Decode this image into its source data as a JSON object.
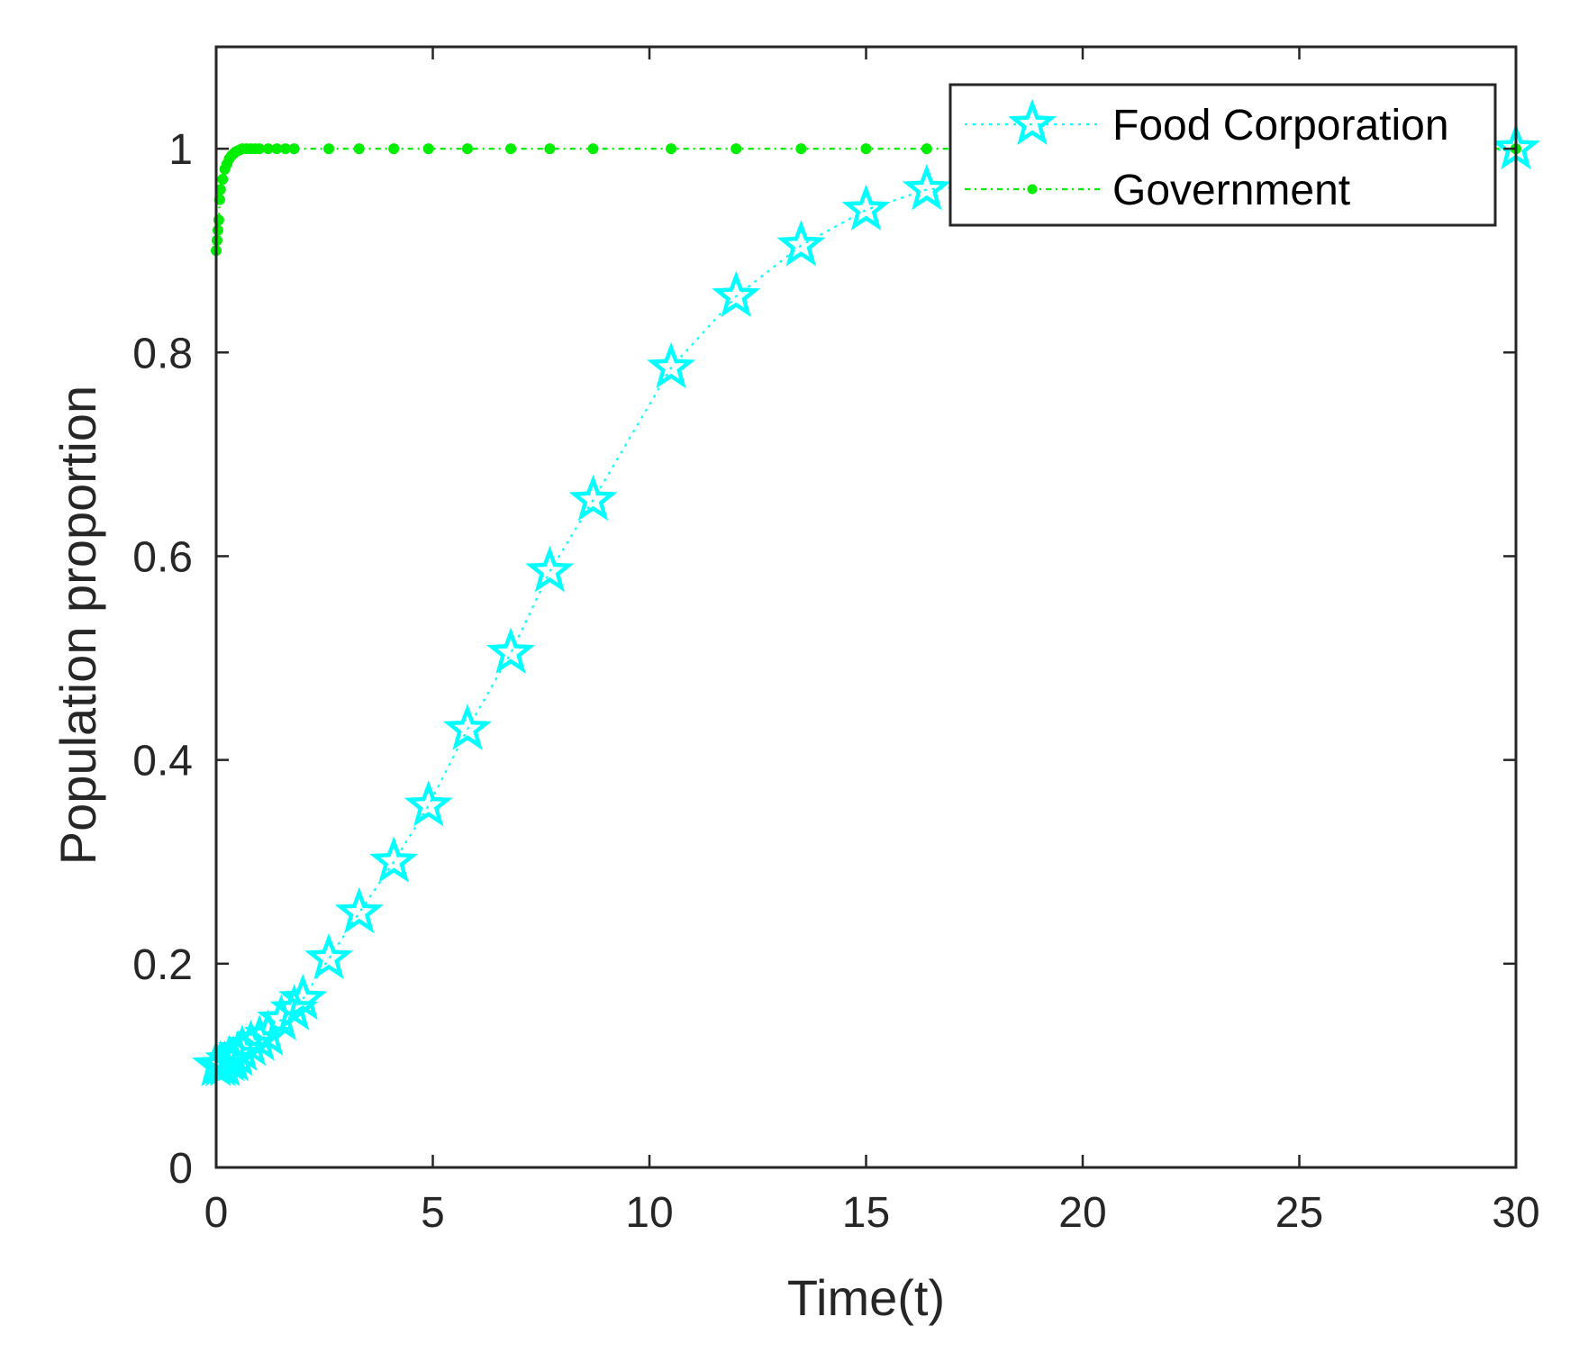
{
  "chart_data": {
    "type": "line",
    "xlabel": "Time(t)",
    "ylabel": "Population proportion",
    "xlim": [
      0,
      30
    ],
    "ylim": [
      0,
      1.1
    ],
    "xticks": [
      0,
      5,
      10,
      15,
      20,
      25,
      30
    ],
    "yticks": [
      0,
      0.2,
      0.4,
      0.6,
      0.8,
      1
    ],
    "xtick_labels": [
      "0",
      "5",
      "10",
      "15",
      "20",
      "25",
      "30"
    ],
    "ytick_labels": [
      "0",
      "0.2",
      "0.4",
      "0.6",
      "0.8",
      "1"
    ],
    "grid": false,
    "legend_position": "top-right",
    "series": [
      {
        "name": "Food Corporation",
        "color": "#00FFFF",
        "marker": "star",
        "line_style": "dotted",
        "x": [
          0,
          0.1,
          0.2,
          0.3,
          0.4,
          0.5,
          0.6,
          0.8,
          1.0,
          1.2,
          1.5,
          1.8,
          2.0,
          2.6,
          3.3,
          4.1,
          4.9,
          5.8,
          6.8,
          7.7,
          8.7,
          10.5,
          12.0,
          13.5,
          15.0,
          16.4,
          30.0
        ],
        "y": [
          0.1,
          0.1,
          0.1,
          0.105,
          0.105,
          0.11,
          0.115,
          0.12,
          0.125,
          0.13,
          0.145,
          0.155,
          0.165,
          0.205,
          0.25,
          0.3,
          0.355,
          0.43,
          0.505,
          0.585,
          0.655,
          0.785,
          0.855,
          0.905,
          0.94,
          0.96,
          1.0
        ]
      },
      {
        "name": "Government",
        "color": "#00EE00",
        "marker": "dot",
        "line_style": "dash-dot",
        "x": [
          0,
          0.02,
          0.04,
          0.06,
          0.08,
          0.1,
          0.15,
          0.2,
          0.25,
          0.3,
          0.35,
          0.4,
          0.45,
          0.5,
          0.55,
          0.6,
          0.7,
          0.8,
          0.9,
          1.0,
          1.2,
          1.4,
          1.6,
          1.8,
          2.6,
          3.3,
          4.1,
          4.9,
          5.8,
          6.8,
          7.7,
          8.7,
          10.5,
          12.0,
          13.5,
          15.0,
          16.4,
          30.0
        ],
        "y": [
          0.9,
          0.91,
          0.92,
          0.93,
          0.95,
          0.96,
          0.97,
          0.98,
          0.985,
          0.99,
          0.993,
          0.995,
          0.997,
          0.998,
          0.999,
          1.0,
          1.0,
          1.0,
          1.0,
          1.0,
          1.0,
          1.0,
          1.0,
          1.0,
          1.0,
          1.0,
          1.0,
          1.0,
          1.0,
          1.0,
          1.0,
          1.0,
          1.0,
          1.0,
          1.0,
          1.0,
          1.0,
          1.0
        ]
      }
    ]
  }
}
